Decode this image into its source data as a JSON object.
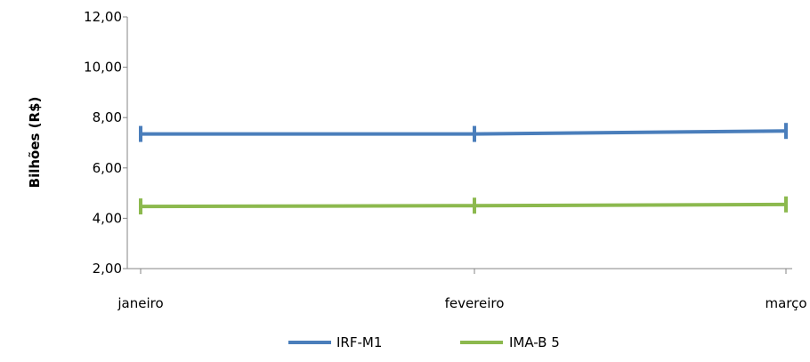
{
  "chart_data": {
    "type": "line",
    "categories": [
      "janeiro",
      "fevereiro",
      "março"
    ],
    "series": [
      {
        "name": "IRF-M1",
        "values": [
          7.35,
          7.35,
          7.47
        ],
        "color": "#4a7ebb"
      },
      {
        "name": "IMA-B 5",
        "values": [
          4.47,
          4.5,
          4.55
        ],
        "color": "#8cb94e"
      }
    ],
    "ylabel": "Bilhões (R$)",
    "ylim": [
      2,
      12
    ],
    "yticks": [
      2,
      4,
      6,
      8,
      10,
      12
    ],
    "ytick_labels": [
      "2,00",
      "4,00",
      "6,00",
      "8,00",
      "10,00",
      "12,00"
    ],
    "grid": false,
    "legend_position": "bottom"
  }
}
